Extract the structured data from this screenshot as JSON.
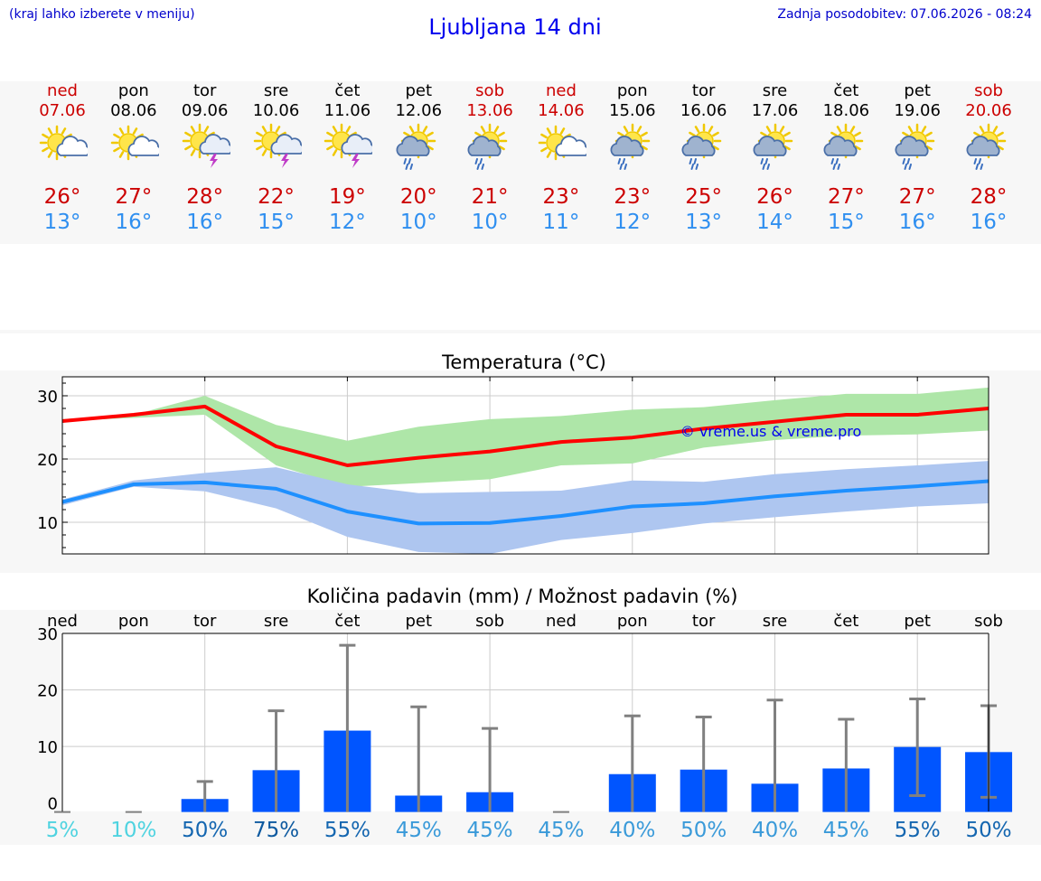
{
  "header": {
    "menu_note": "(kraj lahko izberete v meniju)",
    "title": "Ljubljana 14 dni",
    "updated": "Zadnja posodobitev: 07.06.2026 - 08:24"
  },
  "days": [
    {
      "name": "ned",
      "date": "07.06",
      "icon": "sun-cloud-icon",
      "max": "26°",
      "min": "13°",
      "weekend": true
    },
    {
      "name": "pon",
      "date": "08.06",
      "icon": "sun-cloud-icon",
      "max": "27°",
      "min": "16°",
      "weekend": false
    },
    {
      "name": "tor",
      "date": "09.06",
      "icon": "sun-cloud-thunder-icon",
      "max": "28°",
      "min": "16°",
      "weekend": false
    },
    {
      "name": "sre",
      "date": "10.06",
      "icon": "sun-cloud-thunder-icon",
      "max": "22°",
      "min": "15°",
      "weekend": false
    },
    {
      "name": "čet",
      "date": "11.06",
      "icon": "sun-cloud-thunder-icon",
      "max": "19°",
      "min": "12°",
      "weekend": false
    },
    {
      "name": "pet",
      "date": "12.06",
      "icon": "sun-cloud-rain-icon",
      "max": "20°",
      "min": "10°",
      "weekend": false
    },
    {
      "name": "sob",
      "date": "13.06",
      "icon": "sun-cloud-rain-icon",
      "max": "21°",
      "min": "10°",
      "weekend": true
    },
    {
      "name": "ned",
      "date": "14.06",
      "icon": "sun-cloud-icon",
      "max": "23°",
      "min": "11°",
      "weekend": true
    },
    {
      "name": "pon",
      "date": "15.06",
      "icon": "sun-cloud-rain-icon",
      "max": "23°",
      "min": "12°",
      "weekend": false
    },
    {
      "name": "tor",
      "date": "16.06",
      "icon": "sun-cloud-rain-icon",
      "max": "25°",
      "min": "13°",
      "weekend": false
    },
    {
      "name": "sre",
      "date": "17.06",
      "icon": "sun-cloud-rain-icon",
      "max": "26°",
      "min": "14°",
      "weekend": false
    },
    {
      "name": "čet",
      "date": "18.06",
      "icon": "sun-cloud-rain-icon",
      "max": "27°",
      "min": "15°",
      "weekend": false
    },
    {
      "name": "pet",
      "date": "19.06",
      "icon": "sun-cloud-rain-icon",
      "max": "27°",
      "min": "16°",
      "weekend": false
    },
    {
      "name": "sob",
      "date": "20.06",
      "icon": "sun-cloud-rain-icon",
      "max": "28°",
      "min": "16°",
      "weekend": true
    }
  ],
  "colors": {
    "max_line": "#ff0000",
    "max_band": "#aee6a8",
    "min_line": "#1e90ff",
    "min_band": "#aec6f0",
    "bar": "#0055ff",
    "errbar": "#808080"
  },
  "chart_data": [
    {
      "type": "line",
      "title": "Temperatura (°C)",
      "watermark": "© vreme.us & vreme.pro",
      "x": [
        "ned",
        "pon",
        "tor",
        "sre",
        "čet",
        "pet",
        "sob",
        "ned",
        "pon",
        "tor",
        "sre",
        "čet",
        "pet",
        "sob"
      ],
      "ylim": [
        5,
        33
      ],
      "yticks": [
        10,
        20,
        30
      ],
      "series": [
        {
          "key": "max",
          "values": [
            26,
            27,
            28.3,
            22,
            19,
            20.2,
            21.2,
            22.7,
            23.4,
            24.8,
            25.9,
            27,
            27,
            28
          ],
          "band_low": [
            26,
            26.5,
            27,
            19,
            15.6,
            16.2,
            16.8,
            19,
            19.3,
            21.8,
            23,
            23.7,
            23.9,
            24.5
          ],
          "band_high": [
            26.3,
            27,
            30,
            25.4,
            22.9,
            25.1,
            26.3,
            26.8,
            27.8,
            28.2,
            29.3,
            30.3,
            30.3,
            31.3
          ]
        },
        {
          "key": "min",
          "values": [
            13.2,
            16,
            16.3,
            15.3,
            11.7,
            9.8,
            9.9,
            11,
            12.5,
            13,
            14.1,
            15,
            15.7,
            16.5
          ],
          "band_low": [
            12.7,
            15.6,
            14.9,
            12.2,
            7.7,
            5.3,
            5,
            7.2,
            8.3,
            9.8,
            10.8,
            11.7,
            12.5,
            13
          ],
          "band_high": [
            13.6,
            16.6,
            17.8,
            18.7,
            16,
            14.6,
            14.8,
            15,
            16.6,
            16.4,
            17.6,
            18.4,
            19,
            19.7
          ]
        }
      ]
    },
    {
      "type": "bar",
      "title": "Količina padavin (mm) / Možnost padavin (%)",
      "categories": [
        "ned",
        "pon",
        "tor",
        "sre",
        "čet",
        "pet",
        "sob",
        "ned",
        "pon",
        "tor",
        "sre",
        "čet",
        "pet",
        "sob"
      ],
      "ylim": [
        -1.5,
        30
      ],
      "yticks": [
        0,
        10,
        20,
        30
      ],
      "values": [
        0,
        0,
        0.7,
        5.8,
        12.8,
        1.3,
        1.9,
        0,
        5.1,
        5.9,
        3.4,
        6.1,
        9.9,
        9.0
      ],
      "err_low": [
        0,
        0,
        0,
        0,
        0,
        0,
        0,
        0,
        0,
        0,
        0,
        0,
        1.3,
        1.0
      ],
      "err_high": [
        0,
        0,
        3.8,
        16.3,
        27.9,
        17,
        13.2,
        0,
        15.4,
        15.2,
        18.2,
        14.8,
        18.4,
        17.2
      ],
      "chance": [
        "5%",
        "10%",
        "50%",
        "75%",
        "55%",
        "45%",
        "45%",
        "45%",
        "40%",
        "50%",
        "40%",
        "45%",
        "55%",
        "50%"
      ],
      "chance_colors": [
        "#4fd3e0",
        "#4fd3e0",
        "#1466b0",
        "#0e5aa0",
        "#1466b0",
        "#3a9ad9",
        "#3a9ad9",
        "#3a9ad9",
        "#3a9ad9",
        "#3a9ad9",
        "#3a9ad9",
        "#3a9ad9",
        "#1466b0",
        "#1466b0"
      ]
    }
  ]
}
